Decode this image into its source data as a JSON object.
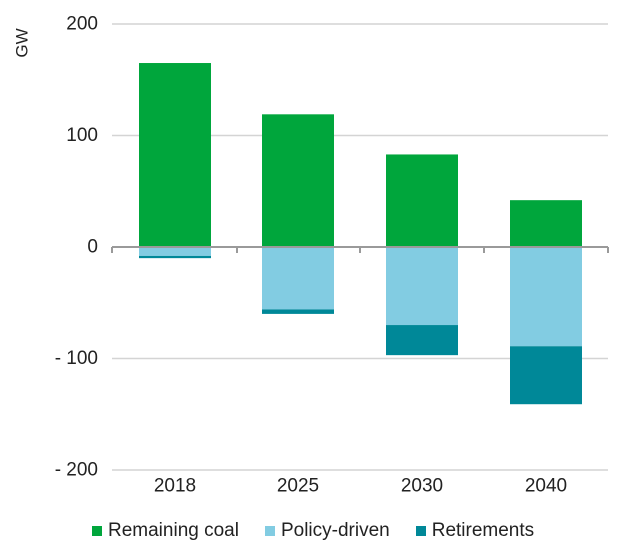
{
  "chart_data": {
    "type": "bar",
    "stacked": true,
    "title": "",
    "xlabel": "",
    "ylabel": "GW",
    "ylim": [
      -200,
      200
    ],
    "yticks": [
      200,
      100,
      0,
      -100,
      -200
    ],
    "ytick_labels": [
      "200",
      "100",
      "0",
      "- 100",
      "- 200"
    ],
    "grid": true,
    "legend_position": "bottom",
    "categories": [
      "2018",
      "2025",
      "2030",
      "2040"
    ],
    "series": [
      {
        "name": "Remaining coal",
        "color": "#00a63c",
        "values": [
          165,
          119,
          83,
          42
        ]
      },
      {
        "name": "Policy-driven",
        "color": "#82cce2",
        "values": [
          -8,
          -56,
          -70,
          -89
        ]
      },
      {
        "name": "Retirements",
        "color": "#008898",
        "values": [
          -2,
          -4,
          -27,
          -52
        ]
      }
    ]
  }
}
